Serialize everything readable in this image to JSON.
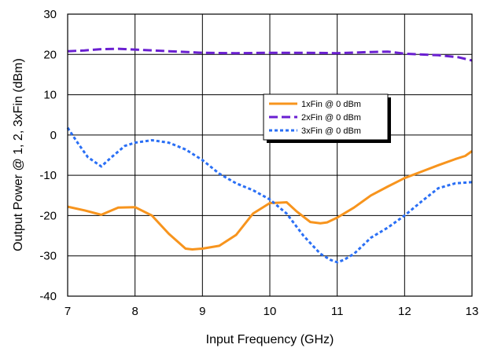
{
  "chart_data": {
    "type": "line",
    "title": "",
    "xlabel": "Input Frequency (GHz)",
    "ylabel": "Output Power @ 1, 2, 3xFin (dBm)",
    "xlim": [
      7,
      13
    ],
    "ylim": [
      -40,
      30
    ],
    "x_ticks": [
      "7",
      "8",
      "9",
      "10",
      "11",
      "12",
      "13"
    ],
    "y_ticks": [
      "-40",
      "-30",
      "-20",
      "-10",
      "0",
      "10",
      "20",
      "30"
    ],
    "grid": true,
    "legend_position": "right-center",
    "series": [
      {
        "name": "1xFin @ 0 dBm",
        "color": "#f7941d",
        "style": "solid",
        "x": [
          7.0,
          7.25,
          7.5,
          7.75,
          8.0,
          8.25,
          8.5,
          8.75,
          8.85,
          9.0,
          9.25,
          9.5,
          9.75,
          10.0,
          10.15,
          10.25,
          10.4,
          10.6,
          10.75,
          10.85,
          11.0,
          11.25,
          11.5,
          11.75,
          12.0,
          12.25,
          12.5,
          12.75,
          12.9,
          13.0
        ],
        "values": [
          -17.8,
          -18.7,
          -19.8,
          -18.0,
          -17.9,
          -20.0,
          -24.5,
          -28.2,
          -28.4,
          -28.2,
          -27.5,
          -24.8,
          -19.5,
          -16.9,
          -16.8,
          -16.7,
          -19.0,
          -21.6,
          -21.9,
          -21.7,
          -20.5,
          -18.0,
          -15.0,
          -12.8,
          -10.7,
          -9.1,
          -7.5,
          -6.0,
          -5.2,
          -4.0
        ]
      },
      {
        "name": "2xFin @ 0 dBm",
        "color": "#6a1fd1",
        "style": "dashed",
        "x": [
          7.0,
          7.25,
          7.5,
          7.75,
          8.0,
          8.5,
          9.0,
          9.5,
          10.0,
          10.5,
          11.0,
          11.5,
          11.75,
          12.0,
          12.5,
          12.8,
          13.0
        ],
        "values": [
          20.8,
          21.0,
          21.3,
          21.4,
          21.2,
          20.8,
          20.4,
          20.3,
          20.4,
          20.4,
          20.3,
          20.6,
          20.7,
          20.2,
          19.8,
          19.3,
          18.5
        ]
      },
      {
        "name": "3xFin @ 0 dBm",
        "color": "#2a6ff5",
        "style": "dotted",
        "x": [
          7.0,
          7.15,
          7.3,
          7.5,
          7.65,
          7.85,
          8.0,
          8.25,
          8.5,
          8.75,
          9.0,
          9.25,
          9.5,
          9.75,
          10.0,
          10.25,
          10.5,
          10.75,
          10.9,
          11.0,
          11.1,
          11.25,
          11.5,
          11.75,
          12.0,
          12.25,
          12.5,
          12.75,
          13.0
        ],
        "values": [
          1.8,
          -2.0,
          -5.5,
          -7.8,
          -5.5,
          -2.7,
          -1.9,
          -1.3,
          -1.9,
          -3.6,
          -6.2,
          -9.6,
          -12.0,
          -13.7,
          -16.0,
          -19.5,
          -25.0,
          -29.5,
          -31.0,
          -31.6,
          -31.0,
          -29.5,
          -25.5,
          -23.0,
          -20.0,
          -16.5,
          -13.2,
          -12.0,
          -11.7
        ]
      }
    ]
  }
}
